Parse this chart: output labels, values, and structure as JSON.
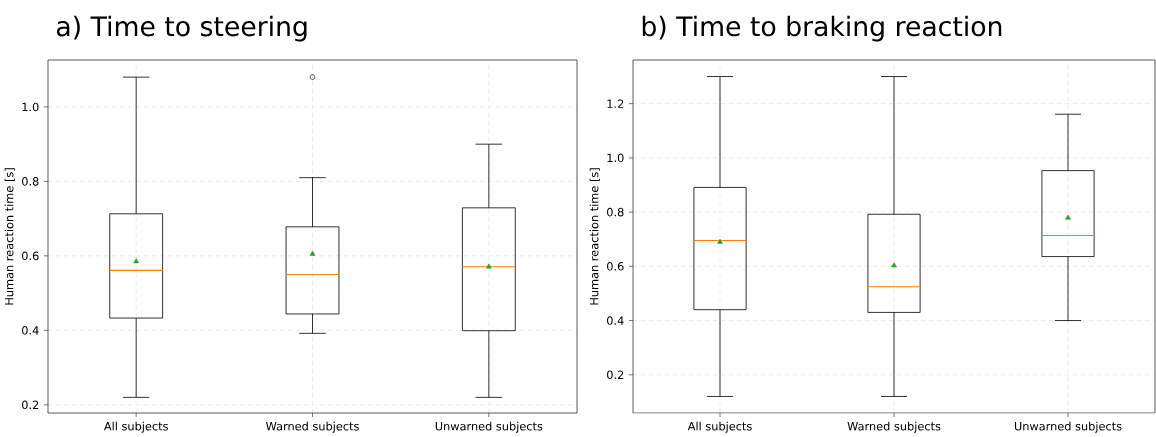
{
  "chart_data": [
    {
      "type": "box",
      "title": "a) Time to steering",
      "ylabel": "Human reaction time [s]",
      "categories": [
        "All subjects",
        "Warned subjects",
        "Unwarned subjects"
      ],
      "boxes": [
        {
          "low": 0.22,
          "q1": 0.433,
          "median": 0.561,
          "q3": 0.713,
          "high": 1.08,
          "mean": 0.585
        },
        {
          "low": 0.392,
          "q1": 0.444,
          "median": 0.55,
          "q3": 0.678,
          "high": 0.81,
          "mean": 0.605,
          "outliers": [
            1.08
          ]
        },
        {
          "low": 0.22,
          "q1": 0.399,
          "median": 0.571,
          "q3": 0.729,
          "high": 0.9,
          "mean": 0.571
        }
      ],
      "ylim": [
        0.178,
        1.126
      ],
      "yticks": [
        0.2,
        0.4,
        0.6,
        0.8,
        {
          "value": 1,
          "label": "1.0"
        }
      ],
      "grid": true
    },
    {
      "type": "box",
      "title": "b) Time to braking reaction",
      "ylabel": "Human reaction time [s]",
      "categories": [
        "All subjects",
        "Warned subjects",
        "Unwarned subjects"
      ],
      "boxes": [
        {
          "low": 0.12,
          "q1": 0.44,
          "median": 0.695,
          "q3": 0.891,
          "high": 1.3,
          "mean": 0.69
        },
        {
          "low": 0.12,
          "q1": 0.43,
          "median": 0.525,
          "q3": 0.792,
          "high": 1.3,
          "mean": 0.603
        },
        {
          "low": 0.4,
          "q1": 0.636,
          "median": 0.714,
          "q3": 0.953,
          "high": 1.161,
          "mean": 0.779
        }
      ],
      "ylim": [
        0.059,
        1.361
      ],
      "yticks": [
        0.2,
        0.4,
        0.6,
        0.8,
        {
          "value": 1,
          "label": "1.0"
        },
        1.2
      ],
      "grid": true
    }
  ]
}
